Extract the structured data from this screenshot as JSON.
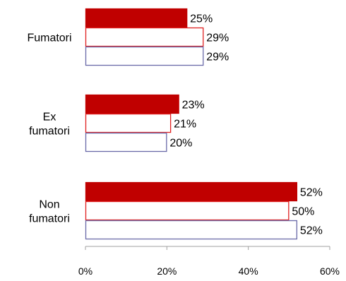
{
  "chart_data": {
    "type": "bar",
    "orientation": "horizontal",
    "categories": [
      [
        "Fumatori"
      ],
      [
        "Ex",
        "fumatori"
      ],
      [
        "Non",
        "fumatori"
      ]
    ],
    "series": [
      {
        "values": [
          25,
          23,
          52
        ],
        "fill": "#c00000",
        "stroke": "#c00000"
      },
      {
        "values": [
          29,
          21,
          50
        ],
        "fill": "#ffffff",
        "stroke": "#e02020"
      },
      {
        "values": [
          29,
          20,
          52
        ],
        "fill": "#ffffff",
        "stroke": "#6a6aa8"
      }
    ],
    "data_labels": [
      [
        "25%",
        "23%",
        "52%"
      ],
      [
        "29%",
        "21%",
        "50%"
      ],
      [
        "29%",
        "20%",
        "52%"
      ]
    ],
    "xlim": [
      0,
      60
    ],
    "x_ticks": [
      0,
      20,
      40,
      60
    ],
    "x_tick_labels": [
      "0%",
      "20%",
      "40%",
      "60%"
    ],
    "grid": false,
    "legend": "none",
    "axis_color": "#a0a0a0"
  }
}
